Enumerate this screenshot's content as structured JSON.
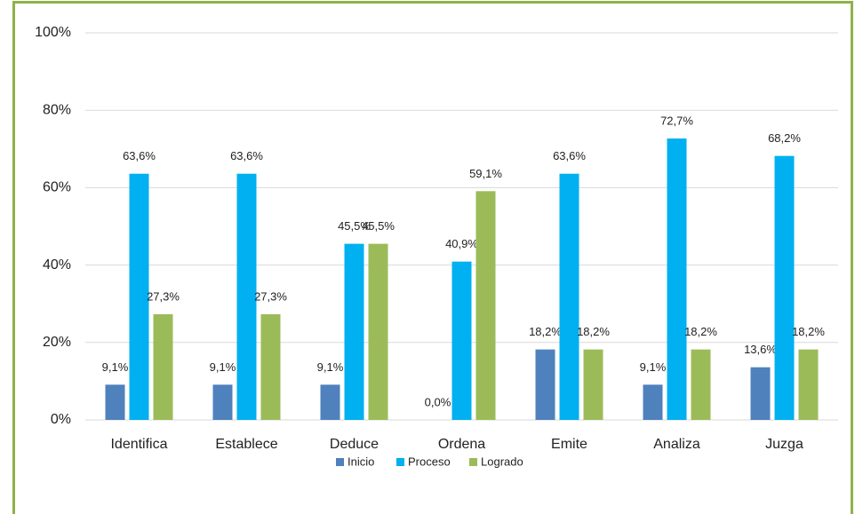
{
  "chart_data": {
    "type": "bar",
    "categories": [
      "Identifica",
      "Establece",
      "Deduce",
      "Ordena",
      "Emite",
      "Analiza",
      "Juzga"
    ],
    "series": [
      {
        "name": "Inicio",
        "color": "#4f81bd",
        "values": [
          9.1,
          9.1,
          9.1,
          0.0,
          18.2,
          9.1,
          13.6
        ],
        "value_labels": [
          "9,1%",
          "9,1%",
          "9,1%",
          "0,0%",
          "18,2%",
          "9,1%",
          "13,6%"
        ]
      },
      {
        "name": "Proceso",
        "color": "#00b0f0",
        "values": [
          63.6,
          63.6,
          45.5,
          40.9,
          63.6,
          72.7,
          68.2
        ],
        "value_labels": [
          "63,6%",
          "63,6%",
          "45,5%",
          "40,9%",
          "63,6%",
          "72,7%",
          "68,2%"
        ]
      },
      {
        "name": "Logrado",
        "color": "#9bbb59",
        "values": [
          27.3,
          27.3,
          45.5,
          59.1,
          18.2,
          18.2,
          18.2
        ],
        "value_labels": [
          "27,3%",
          "27,3%",
          "45,5%",
          "59,1%",
          "18,2%",
          "18,2%",
          "18,2%"
        ]
      }
    ],
    "ylim": [
      0,
      100
    ],
    "yticks": [
      {
        "value": 0,
        "label": "0%"
      },
      {
        "value": 20,
        "label": "20%"
      },
      {
        "value": 40,
        "label": "40%"
      },
      {
        "value": 60,
        "label": "60%"
      },
      {
        "value": 80,
        "label": "80%"
      },
      {
        "value": 100,
        "label": "100%"
      }
    ],
    "grid": true,
    "legend": "bottom"
  }
}
